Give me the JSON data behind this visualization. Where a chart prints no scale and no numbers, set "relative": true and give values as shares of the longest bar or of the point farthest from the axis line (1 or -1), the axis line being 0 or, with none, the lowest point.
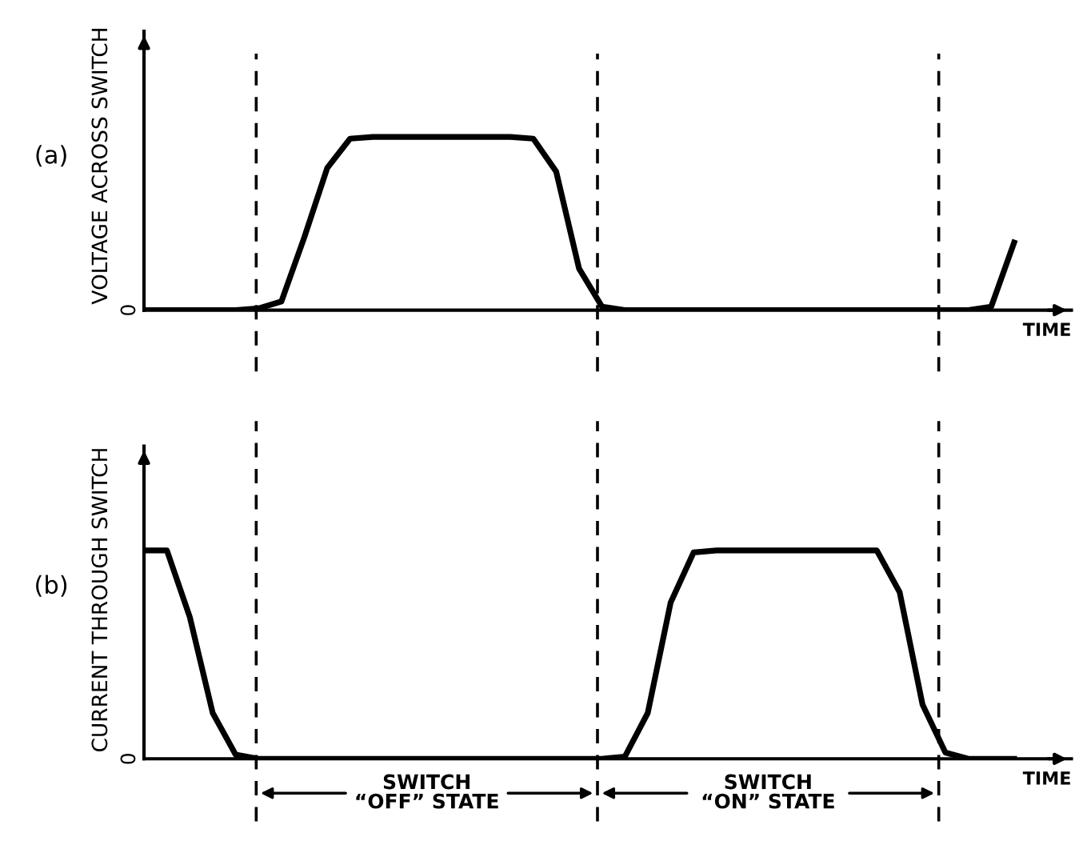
{
  "chart_data": [
    {
      "type": "line",
      "relative": true,
      "xlabel": "TIME",
      "ylabel": "VOLTAGE ACROSS SWITCH",
      "categories": [
        null,
        null,
        null,
        null,
        null,
        null,
        null,
        null,
        null,
        null,
        null,
        null,
        null,
        null,
        null,
        null,
        null,
        null,
        null,
        null,
        null,
        null,
        null,
        null,
        null,
        null,
        null,
        null,
        null,
        null,
        null,
        null,
        null,
        null,
        null,
        null,
        null,
        null,
        null
      ],
      "series": [
        {
          "color": "#000000",
          "values": [
            0,
            0,
            0,
            0,
            0,
            0.01,
            0.05,
            0.42,
            0.82,
            0.99,
            1,
            1,
            1,
            1,
            1,
            1,
            1,
            0.99,
            0.8,
            0.24,
            0.02,
            0,
            0,
            0,
            0,
            0,
            0,
            0,
            0,
            0,
            0,
            0,
            0,
            0,
            0,
            0,
            0,
            0.02,
            0.39
          ]
        }
      ],
      "annotations": [
        "(a)",
        "0"
      ]
    },
    {
      "type": "line",
      "relative": true,
      "xlabel": "TIME",
      "ylabel": "CURRENT THROUGH SWITCH",
      "categories": [
        null,
        null,
        null,
        null,
        null,
        null,
        null,
        null,
        null,
        null,
        null,
        null,
        null,
        null,
        null,
        null,
        null,
        null,
        null,
        null,
        null,
        null,
        null,
        null,
        null,
        null,
        null,
        null,
        null,
        null,
        null,
        null,
        null,
        null,
        null,
        null,
        null,
        null,
        null
      ],
      "series": [
        {
          "color": "#000000",
          "values": [
            1,
            1,
            0.68,
            0.22,
            0.02,
            0,
            0,
            0,
            0,
            0,
            0,
            0,
            0,
            0,
            0,
            0,
            0,
            0,
            0,
            0,
            0,
            0.01,
            0.22,
            0.75,
            0.99,
            1,
            1,
            1,
            1,
            1,
            1,
            1,
            1,
            0.8,
            0.26,
            0.03,
            0,
            0,
            0
          ]
        }
      ],
      "annotations": [
        "(b)",
        "0",
        "SWITCH\n“OFF” STATE",
        "SWITCH\n“ON” STATE"
      ]
    }
  ]
}
